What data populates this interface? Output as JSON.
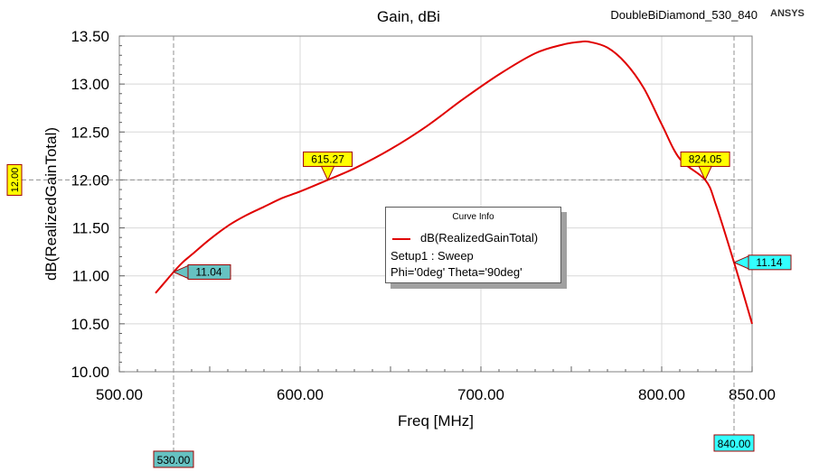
{
  "chart_data": {
    "type": "line",
    "title": "Gain, dBi",
    "design_name": "DoubleBiDiamond_530_840",
    "brand": "ANSYS",
    "xlabel": "Freq [MHz]",
    "ylabel": "dB(RealizedGainTotal)",
    "xlim": [
      500,
      850
    ],
    "ylim": [
      10,
      13.5
    ],
    "x_ticks": [
      "500.00",
      "600.00",
      "700.00",
      "800.00",
      "850.00"
    ],
    "x_tick_values": [
      500,
      600,
      700,
      800,
      850
    ],
    "y_ticks": [
      "10.00",
      "10.50",
      "11.00",
      "11.50",
      "12.00",
      "12.50",
      "13.00",
      "13.50"
    ],
    "y_tick_values": [
      10,
      10.5,
      11,
      11.5,
      12,
      12.5,
      13,
      13.5
    ],
    "grid": true,
    "series": [
      {
        "name": "dB(RealizedGainTotal)",
        "color": "#e00000",
        "x": [
          520,
          525,
          530,
          535,
          540,
          550,
          560,
          570,
          580,
          590,
          600,
          615.27,
          630,
          650,
          670,
          690,
          710,
          730,
          745,
          755,
          760,
          770,
          780,
          790,
          800,
          810,
          824.05,
          830,
          840,
          850
        ],
        "y": [
          10.82,
          10.93,
          11.04,
          11.14,
          11.22,
          11.38,
          11.52,
          11.63,
          11.72,
          11.81,
          11.88,
          12.0,
          12.12,
          12.32,
          12.56,
          12.84,
          13.1,
          13.32,
          13.41,
          13.44,
          13.44,
          13.38,
          13.22,
          12.96,
          12.58,
          12.22,
          12.0,
          11.74,
          11.14,
          10.5
        ]
      }
    ],
    "legend": {
      "title": "Curve Info",
      "setup": "Setup1 : Sweep",
      "variation": "Phi='0deg' Theta='90deg'",
      "placement": "center"
    },
    "markers": [
      {
        "x": 615.27,
        "y": 12.0,
        "label": "615.27",
        "color": "#ffff00"
      },
      {
        "x": 824.05,
        "y": 12.0,
        "label": "824.05",
        "color": "#ffff00"
      },
      {
        "x": 530,
        "y": 11.04,
        "label": "11.04",
        "color": "#66c2c2"
      },
      {
        "x": 840,
        "y": 11.14,
        "label": "11.14",
        "color": "#33ffff"
      }
    ],
    "cursor_labels": {
      "y_cursor": {
        "value": 12.0,
        "label": "12.00",
        "color": "#ffff00"
      },
      "x_cursor_1": {
        "value": 530,
        "label": "530.00",
        "color": "#66c2c2"
      },
      "x_cursor_2": {
        "value": 840,
        "label": "840.00",
        "color": "#33ffff"
      }
    }
  }
}
